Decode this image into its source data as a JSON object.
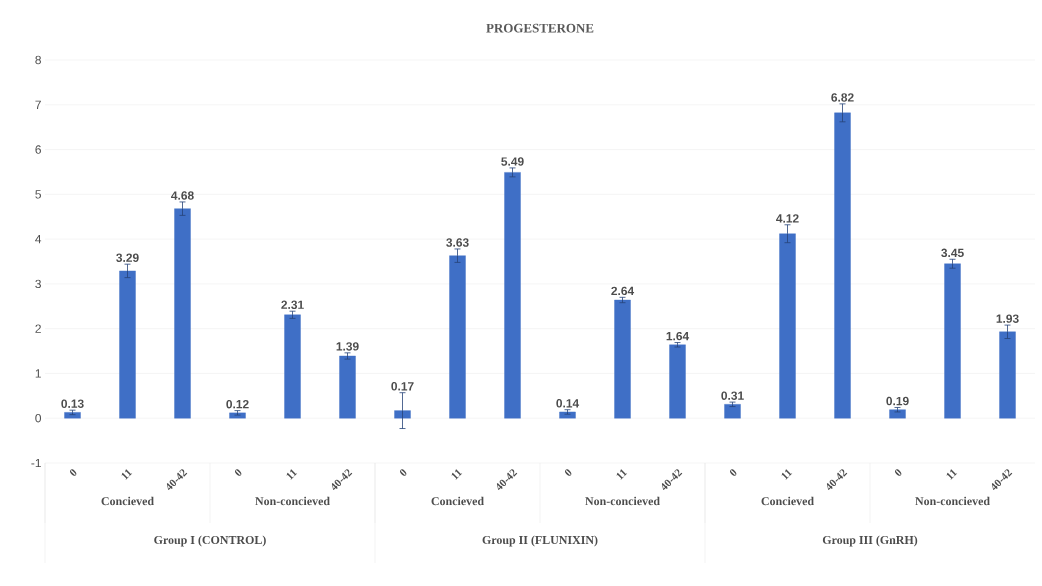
{
  "chart_data": {
    "type": "bar",
    "title": "PROGESTERONE",
    "categories": [
      "0",
      "11",
      "40-42",
      "0",
      "11",
      "40-42",
      "0",
      "11",
      "40-42",
      "0",
      "11",
      "40-42",
      "0",
      "11",
      "40-42",
      "0",
      "11",
      "40-42"
    ],
    "values": [
      0.13,
      3.29,
      4.68,
      0.12,
      2.31,
      1.39,
      0.17,
      3.63,
      5.49,
      0.14,
      2.64,
      1.64,
      0.31,
      4.12,
      6.82,
      0.19,
      3.45,
      1.93
    ],
    "errors": [
      0.05,
      0.15,
      0.15,
      0.05,
      0.08,
      0.07,
      0.4,
      0.15,
      0.1,
      0.05,
      0.06,
      0.05,
      0.05,
      0.2,
      0.2,
      0.05,
      0.1,
      0.15
    ],
    "color": "#3f6fc6",
    "ylim": [
      -1,
      8
    ],
    "yticks": [
      -1,
      0,
      1,
      2,
      3,
      4,
      5,
      6,
      7,
      8
    ],
    "grid": "y",
    "data_labels": true,
    "annotations": [
      "Concieved",
      "Non-concieved",
      "Concieved",
      "Non-concieved",
      "Concieved",
      "Non-concieved",
      "Group I (CONTROL)",
      "Group II (FLUNIXIN)",
      "Group III (GnRH)"
    ]
  }
}
